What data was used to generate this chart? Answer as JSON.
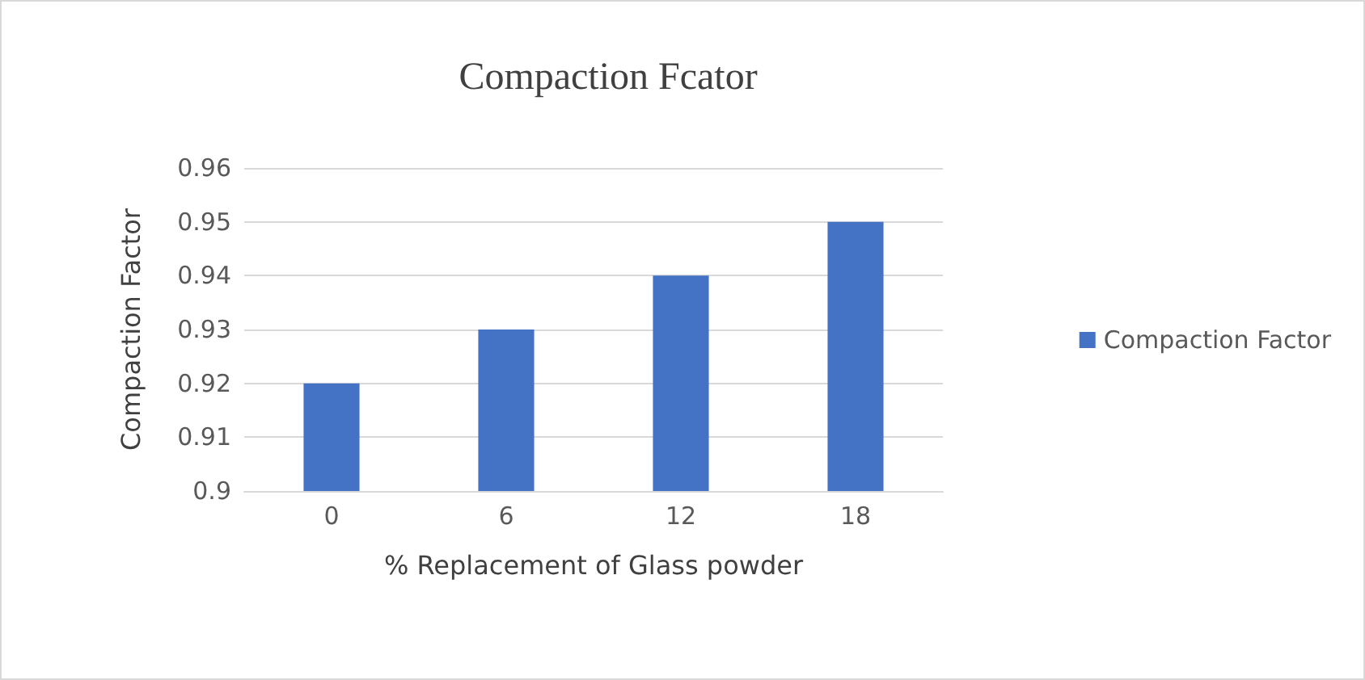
{
  "chart_data": {
    "type": "bar",
    "title": "Compaction Fcator",
    "xlabel": "% Replacement of Glass powder",
    "ylabel": "Compaction Factor",
    "categories": [
      "0",
      "6",
      "12",
      "18"
    ],
    "series": [
      {
        "name": "Compaction Factor",
        "color": "#4472c4",
        "values": [
          0.92,
          0.93,
          0.94,
          0.95
        ]
      }
    ],
    "ylim": [
      0.9,
      0.96
    ],
    "yticks": [
      0.9,
      0.91,
      0.92,
      0.93,
      0.94,
      0.95,
      0.96
    ],
    "grid": "y",
    "legend": "right"
  }
}
